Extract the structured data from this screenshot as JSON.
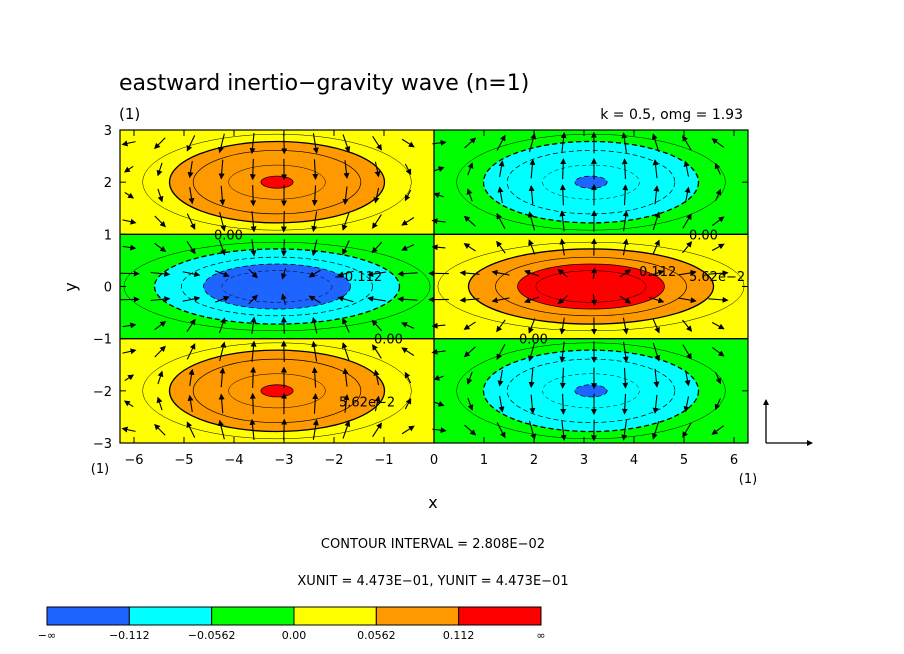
{
  "chart_data": {
    "type": "heatmap",
    "title": "eastward inertio−gravity wave (n=1)",
    "subtitle_left": "(1)",
    "subtitle_right": "k = 0.5, omg = 1.93",
    "xlabel": "x",
    "ylabel": "y",
    "x_unit_label": "(1)",
    "y_unit_label": "(1)",
    "xlim": [
      -6.28,
      6.28
    ],
    "ylim": [
      -3,
      3
    ],
    "x_ticks": [
      "−6",
      "−5",
      "−4",
      "−3",
      "−2",
      "−1",
      "0",
      "1",
      "2",
      "3",
      "4",
      "5",
      "6"
    ],
    "y_ticks": [
      "−3",
      "−2",
      "−1",
      "0",
      "1",
      "2",
      "3"
    ],
    "field": "amplitude * cos(k x) * sin(pi y)-like pattern; sign alternates by x-half and latitude band",
    "cells": [
      {
        "x_range": [
          -6.28,
          0
        ],
        "y_range": [
          1,
          3
        ],
        "sign": 1
      },
      {
        "x_range": [
          0,
          6.28
        ],
        "y_range": [
          1,
          3
        ],
        "sign": -1
      },
      {
        "x_range": [
          -6.28,
          0
        ],
        "y_range": [
          -1,
          1
        ],
        "sign": -1
      },
      {
        "x_range": [
          0,
          6.28
        ],
        "y_range": [
          -1,
          1
        ],
        "sign": 1
      },
      {
        "x_range": [
          -6.28,
          0
        ],
        "y_range": [
          -3,
          -1
        ],
        "sign": 1
      },
      {
        "x_range": [
          0,
          6.28
        ],
        "y_range": [
          -3,
          -1
        ],
        "sign": -1
      }
    ],
    "contour_interval": 0.02808,
    "contour_labels": [
      {
        "text": "0.00",
        "x": -4.4,
        "y": 1.0
      },
      {
        "text": "−0.112",
        "x": -2.0,
        "y": 0.2
      },
      {
        "text": "0.00",
        "x": -1.2,
        "y": -1.0
      },
      {
        "text": "5.62e−2",
        "x": -1.9,
        "y": -2.2
      },
      {
        "text": "0.00",
        "x": 5.1,
        "y": 1.0
      },
      {
        "text": "0.112",
        "x": 4.1,
        "y": 0.3
      },
      {
        "text": "5.62e−2",
        "x": 5.1,
        "y": 0.2
      },
      {
        "text": "0.00",
        "x": 1.7,
        "y": -1.0
      }
    ],
    "legend": {
      "boundaries": [
        "−∞",
        "−0.112",
        "−0.0562",
        "0.00",
        "0.0562",
        "0.112",
        "∞"
      ],
      "colors": [
        "#1e64ff",
        "#00ffff",
        "#00ff00",
        "#ffff00",
        "#ff9900",
        "#ff0000"
      ]
    },
    "contour_interval_text": "CONTOUR INTERVAL = 2.808E−02",
    "unit_text": "XUNIT = 4.473E−01, YUNIT = 4.473E−01"
  }
}
